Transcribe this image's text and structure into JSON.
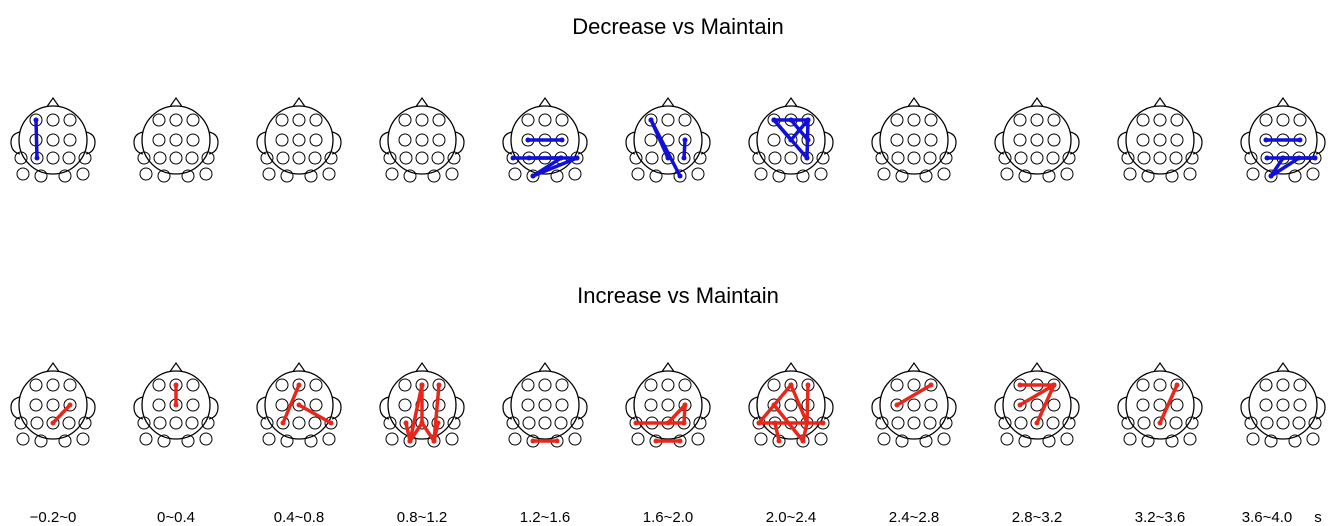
{
  "rows": [
    {
      "title": "Decrease vs Maintain"
    },
    {
      "title": "Increase vs Maintain"
    }
  ],
  "time_labels": [
    "−0.2~0",
    "0~0.4",
    "0.4~0.8",
    "0.8~1.2",
    "1.2~1.6",
    "1.6~2.0",
    "2.0~2.4",
    "2.4~2.8",
    "2.8~3.2",
    "3.2~3.6",
    "3.6~4.0"
  ],
  "unit": "s"
}
